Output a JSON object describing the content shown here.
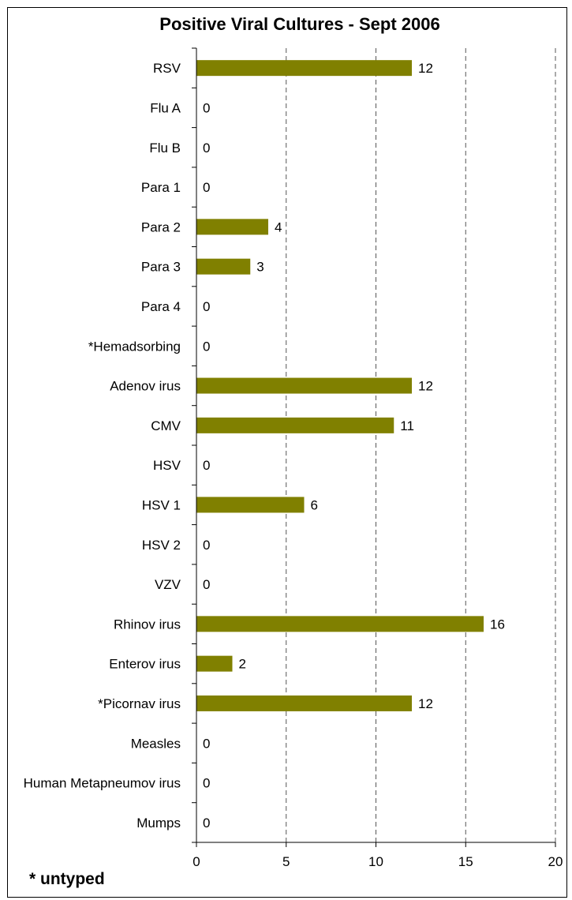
{
  "chart_data": {
    "type": "bar",
    "orientation": "horizontal",
    "title": "Positive Viral Cultures - Sept 2006",
    "categories": [
      "RSV",
      "Flu A",
      "Flu B",
      "Para 1",
      "Para 2",
      "Para 3",
      "Para 4",
      "*Hemadsorbing",
      "Adenov irus",
      "CMV",
      "HSV",
      "HSV 1",
      "HSV 2",
      "VZV",
      "Rhinov irus",
      "Enterov irus",
      "*Picornav irus",
      "Measles",
      "Human Metapneumov irus",
      "Mumps"
    ],
    "values": [
      12,
      0,
      0,
      0,
      4,
      3,
      0,
      0,
      12,
      11,
      0,
      6,
      0,
      0,
      16,
      2,
      12,
      0,
      0,
      0
    ],
    "xlim": [
      0,
      20
    ],
    "xticks": [
      0,
      5,
      10,
      15,
      20
    ],
    "grid": "vertical dashed",
    "legend": "none",
    "xlabel": "",
    "ylabel": "",
    "colors": {
      "bar": "#808000",
      "grid": "#555555",
      "axis": "#000000",
      "text": "#000000"
    }
  },
  "footnote": "* untyped"
}
